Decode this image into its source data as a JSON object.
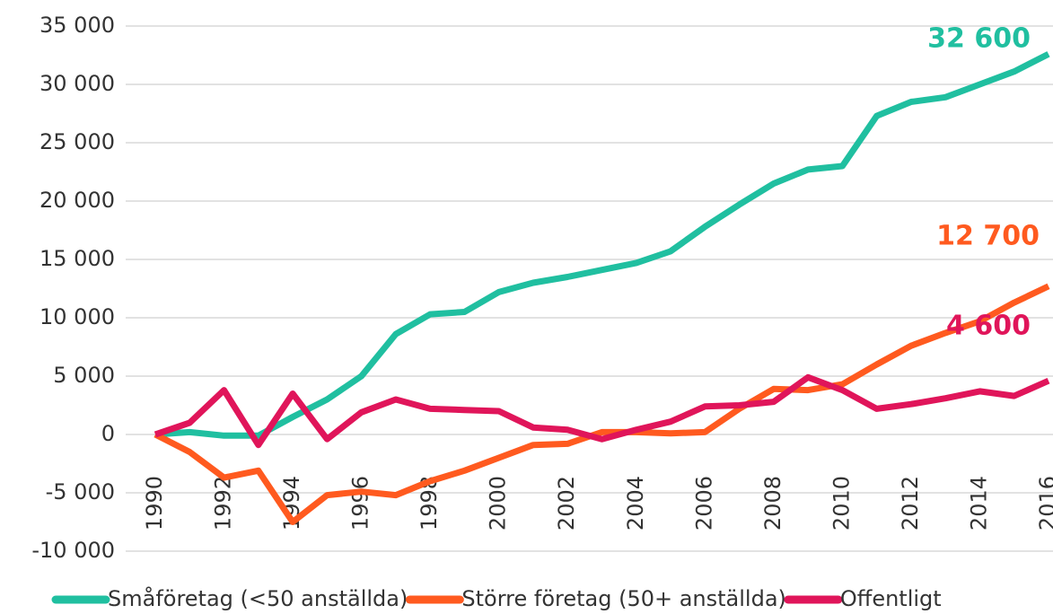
{
  "chart_data": {
    "type": "line",
    "x": [
      1990,
      1991,
      1992,
      1993,
      1994,
      1995,
      1996,
      1997,
      1998,
      1999,
      2000,
      2001,
      2002,
      2003,
      2004,
      2005,
      2006,
      2007,
      2008,
      2009,
      2010,
      2011,
      2012,
      2013,
      2014,
      2015,
      2016
    ],
    "xlim": [
      1990,
      2016
    ],
    "xticks": [
      1990,
      1992,
      1994,
      1996,
      1998,
      2000,
      2002,
      2004,
      2006,
      2008,
      2010,
      2012,
      2014,
      2016
    ],
    "ylim": [
      -10000,
      35000
    ],
    "yticks": [
      {
        "value": -10000,
        "label": "-10 000"
      },
      {
        "value": -5000,
        "label": "-5 000"
      },
      0,
      {
        "value": 5000,
        "label": "5 000"
      },
      {
        "value": 10000,
        "label": "10 000"
      },
      {
        "value": 15000,
        "label": "15 000"
      },
      {
        "value": 20000,
        "label": "20 000"
      },
      {
        "value": 25000,
        "label": "25 000"
      },
      {
        "value": 30000,
        "label": "30 000"
      },
      {
        "value": 35000,
        "label": "35 000"
      }
    ],
    "grid": true,
    "legend": "bottom",
    "series": [
      {
        "name": "Småföretag (<50 anställda)",
        "color": "#20bfa0",
        "end_label": "32 600",
        "values": [
          0,
          200,
          -100,
          -100,
          1500,
          3000,
          5000,
          8600,
          10300,
          10500,
          12200,
          13000,
          13500,
          14100,
          14700,
          15700,
          17800,
          19700,
          21500,
          22700,
          23000,
          27300,
          28500,
          28900,
          30000,
          31100,
          32600
        ]
      },
      {
        "name": "Större företag (50+ anställda)",
        "color": "#ff5a1f",
        "end_label": "12 700",
        "values": [
          0,
          -1500,
          -3700,
          -3100,
          -7500,
          -5200,
          -4900,
          -5200,
          -4000,
          -3100,
          -2000,
          -900,
          -800,
          200,
          200,
          100,
          200,
          2200,
          3900,
          3800,
          4300,
          6000,
          7600,
          8700,
          9700,
          11300,
          12700
        ]
      },
      {
        "name": "Offentligt",
        "color": "#e0155a",
        "end_label": "4 600",
        "values": [
          0,
          1000,
          3800,
          -900,
          3500,
          -400,
          1900,
          3000,
          2200,
          2100,
          2000,
          600,
          400,
          -400,
          400,
          1100,
          2400,
          2500,
          2800,
          4900,
          3800,
          2200,
          2600,
          3100,
          3700,
          3300,
          4600
        ]
      }
    ]
  }
}
